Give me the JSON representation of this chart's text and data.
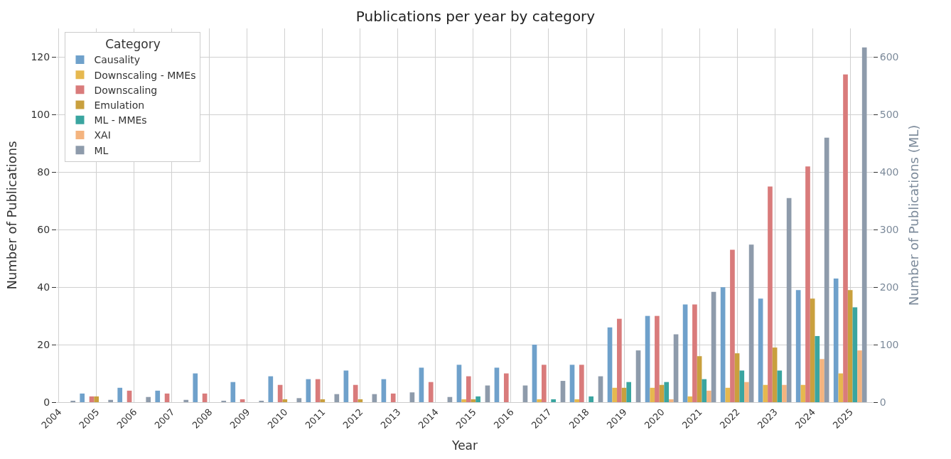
{
  "chart_data": {
    "type": "bar",
    "title": "Publications per year by category",
    "xlabel": "Year",
    "ylabel": "Number of Publications",
    "y2label": "Number of Publications (ML)",
    "legend_title": "Category",
    "categories": [
      "2004",
      "2005",
      "2006",
      "2007",
      "2008",
      "2009",
      "2010",
      "2011",
      "2012",
      "2013",
      "2014",
      "2015",
      "2016",
      "2017",
      "2018",
      "2019",
      "2020",
      "2021",
      "2022",
      "2023",
      "2024",
      "2025"
    ],
    "series": [
      {
        "name": "Causality",
        "color": "#6fa1cb",
        "values": [
          null,
          3,
          5,
          4,
          10,
          7,
          9,
          8,
          11,
          8,
          12,
          13,
          12,
          20,
          13,
          26,
          30,
          34,
          40,
          36,
          39,
          43
        ]
      },
      {
        "name": "Downscaling - MMEs",
        "color": "#e6b84f",
        "values": [
          null,
          null,
          null,
          null,
          null,
          null,
          null,
          null,
          null,
          null,
          null,
          1,
          null,
          1,
          1,
          5,
          5,
          2,
          5,
          6,
          6,
          10
        ]
      },
      {
        "name": "Downscaling",
        "color": "#d97b7b",
        "values": [
          null,
          2,
          4,
          3,
          3,
          1,
          6,
          8,
          6,
          3,
          7,
          9,
          10,
          13,
          13,
          29,
          30,
          34,
          53,
          75,
          82,
          114
        ]
      },
      {
        "name": "Emulation",
        "color": "#c9a03e",
        "values": [
          null,
          2,
          null,
          null,
          null,
          null,
          1,
          1,
          1,
          null,
          null,
          1,
          null,
          null,
          null,
          5,
          6,
          16,
          17,
          19,
          36,
          39
        ]
      },
      {
        "name": "ML - MMEs",
        "color": "#3aa5a0",
        "values": [
          null,
          null,
          null,
          null,
          null,
          null,
          null,
          null,
          null,
          null,
          null,
          2,
          null,
          1,
          2,
          7,
          7,
          8,
          11,
          11,
          23,
          33
        ]
      },
      {
        "name": "XAI",
        "color": "#f4b47f",
        "values": [
          null,
          null,
          null,
          null,
          null,
          null,
          null,
          null,
          null,
          null,
          null,
          null,
          null,
          null,
          null,
          null,
          1,
          4,
          7,
          6,
          15,
          18
        ]
      },
      {
        "name": "ML",
        "color": "#8e9bab",
        "axis": "y2",
        "values": [
          2,
          4,
          9,
          4,
          2,
          2,
          7,
          14,
          14,
          17,
          9,
          29,
          29,
          37,
          45,
          90,
          118,
          192,
          274,
          355,
          460,
          617
        ]
      }
    ],
    "ylim": [
      0,
      130
    ],
    "yticks": [
      0,
      20,
      40,
      60,
      80,
      100,
      120
    ],
    "y2lim": [
      0,
      650
    ],
    "y2ticks": [
      0,
      100,
      200,
      300,
      400,
      500,
      600
    ],
    "grid": true,
    "legend": "top left"
  }
}
